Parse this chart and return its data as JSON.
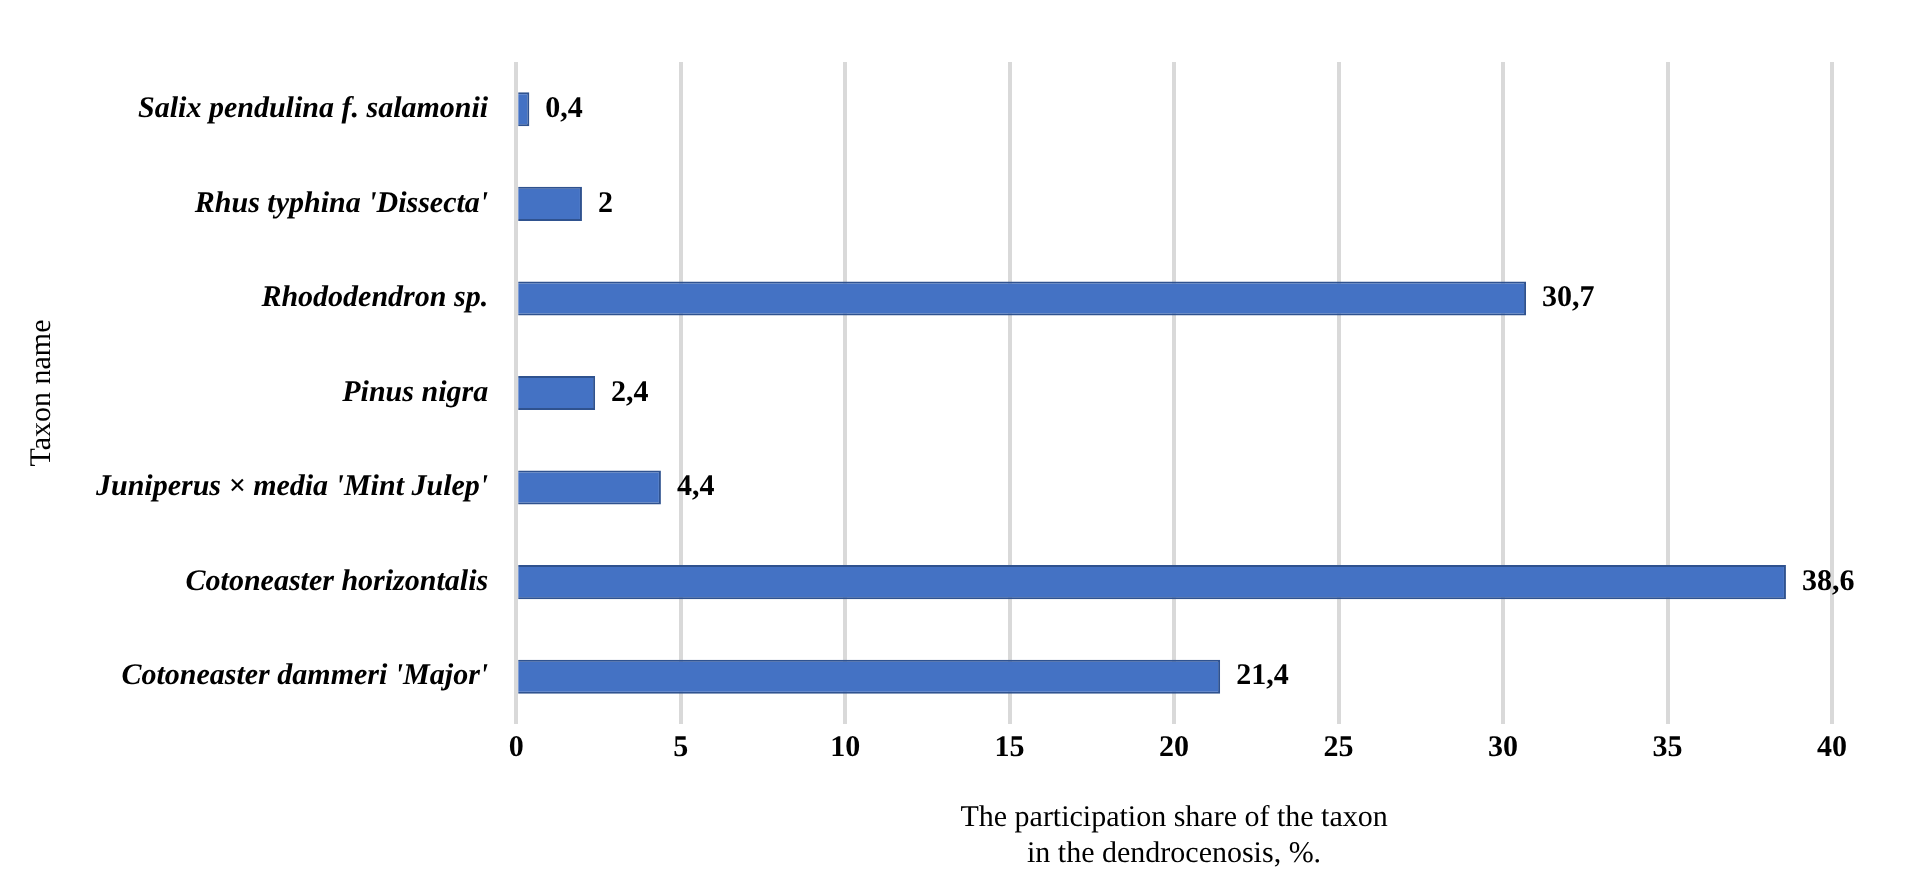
{
  "chart_data": {
    "type": "bar",
    "orientation": "horizontal",
    "categories": [
      "Salix pendulina f. salamonii",
      "Rhus typhina 'Dissecta'",
      "Rhododendron sp.",
      "Pinus nigra",
      "Juniperus × media 'Mint Julep'",
      "Cotoneaster horizontalis",
      "Cotoneaster dammeri 'Major'"
    ],
    "values": [
      0.4,
      2,
      30.7,
      2.4,
      4.4,
      38.6,
      21.4
    ],
    "value_labels": [
      "0,4",
      "2",
      "30,7",
      "2,4",
      "4,4",
      "38,6",
      "21,4"
    ],
    "color": "#4472c4",
    "xlim": [
      0,
      40
    ],
    "xticks": [
      0,
      5,
      10,
      15,
      20,
      25,
      30,
      35,
      40
    ],
    "xlabel": "The participation share of the taxon\nin the dendrocenosis, %.",
    "ylabel": "Taxon name",
    "grid": "x",
    "legend": false
  }
}
